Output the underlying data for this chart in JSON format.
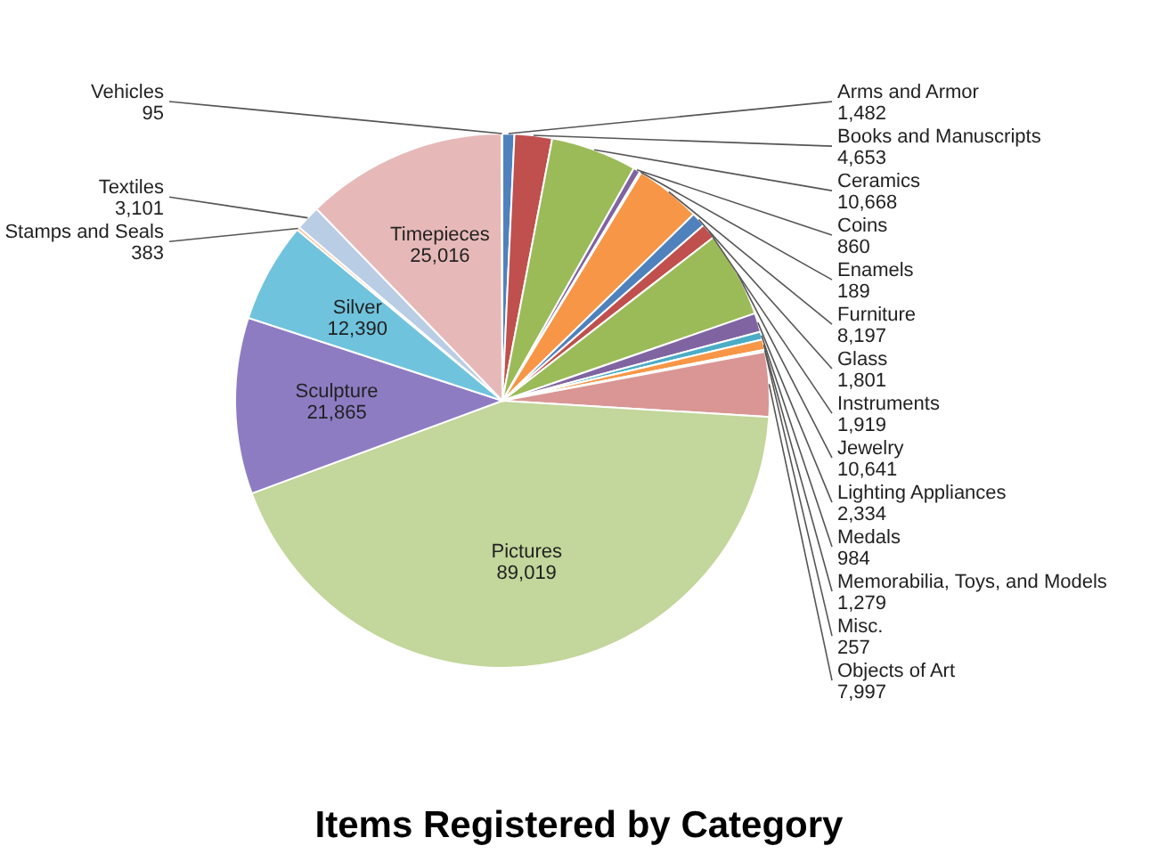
{
  "chart_data": {
    "type": "pie",
    "title": "Items Registered by Category",
    "categories": [
      "Arms and Armor",
      "Books and Manuscripts",
      "Ceramics",
      "Coins",
      "Enamels",
      "Furniture",
      "Glass",
      "Instruments",
      "Jewelry",
      "Lighting Appliances",
      "Medals",
      "Memorabilia, Toys, and Models",
      "Misc.",
      "Objects of Art",
      "Pictures",
      "Sculpture",
      "Silver",
      "Stamps and Seals",
      "Textiles",
      "Timepieces",
      "Vehicles"
    ],
    "values": [
      1482,
      4653,
      10668,
      860,
      189,
      8197,
      1801,
      1919,
      10641,
      2334,
      984,
      1279,
      257,
      7997,
      89019,
      21865,
      12390,
      383,
      3101,
      25016,
      95
    ],
    "colors": [
      "#4f81bd",
      "#c0504d",
      "#9bbb59",
      "#8064a2",
      "#4bacc6",
      "#f79646",
      "#4f81bd",
      "#c0504d",
      "#9bbb59",
      "#8064a2",
      "#4bacc6",
      "#f79646",
      "#95b3d7",
      "#d99694",
      "#c3d69b",
      "#8e7cc3",
      "#6fc3dd",
      "#fac08f",
      "#b9cde5",
      "#e6b9b8",
      "#d7e4bc"
    ],
    "value_labels": [
      "1,482",
      "4,653",
      "10,668",
      "860",
      "189",
      "8,197",
      "1,801",
      "1,919",
      "10,641",
      "2,334",
      "984",
      "1,279",
      "257",
      "7,997",
      "89,019",
      "21,865",
      "12,390",
      "383",
      "3,101",
      "25,016",
      "95"
    ]
  }
}
